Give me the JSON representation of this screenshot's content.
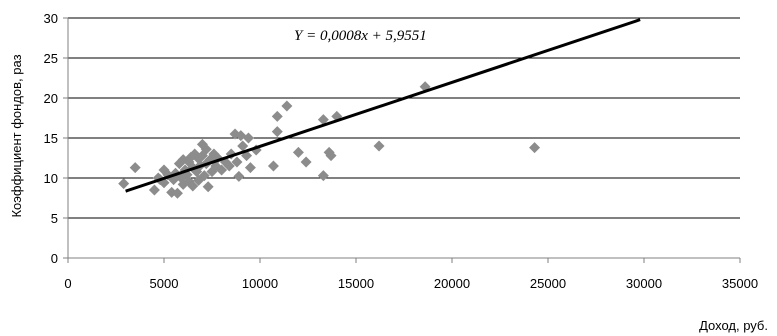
{
  "chart_data": {
    "type": "scatter",
    "title": "",
    "xlabel": "Доход, руб.",
    "ylabel": "Коэффициент фондов, раз",
    "xlim": [
      0,
      35000
    ],
    "ylim": [
      0,
      30
    ],
    "xticks": [
      0,
      5000,
      10000,
      15000,
      20000,
      25000,
      30000,
      35000
    ],
    "yticks": [
      0,
      5,
      10,
      15,
      20,
      25,
      30
    ],
    "grid": "horizontal",
    "legend": "none",
    "marker": "diamond",
    "colors": {
      "points": "#8c8c8c",
      "trendline": "#000000",
      "grid": "#000000",
      "axis": "#808080"
    },
    "series": [
      {
        "points": [
          {
            "x": 2900,
            "y": 9.3
          },
          {
            "x": 3500,
            "y": 11.3
          },
          {
            "x": 4500,
            "y": 8.5
          },
          {
            "x": 4700,
            "y": 10.0
          },
          {
            "x": 4800,
            "y": 9.8
          },
          {
            "x": 5000,
            "y": 11.0
          },
          {
            "x": 5000,
            "y": 9.4
          },
          {
            "x": 5200,
            "y": 10.4
          },
          {
            "x": 5400,
            "y": 8.2
          },
          {
            "x": 5500,
            "y": 9.8
          },
          {
            "x": 5600,
            "y": 10.6
          },
          {
            "x": 5700,
            "y": 8.1
          },
          {
            "x": 5800,
            "y": 11.8
          },
          {
            "x": 5900,
            "y": 10.0
          },
          {
            "x": 6000,
            "y": 12.3
          },
          {
            "x": 6000,
            "y": 9.2
          },
          {
            "x": 6100,
            "y": 11.0
          },
          {
            "x": 6200,
            "y": 10.4
          },
          {
            "x": 6300,
            "y": 12.0
          },
          {
            "x": 6300,
            "y": 9.6
          },
          {
            "x": 6400,
            "y": 12.6
          },
          {
            "x": 6500,
            "y": 11.3
          },
          {
            "x": 6500,
            "y": 9.0
          },
          {
            "x": 6600,
            "y": 13.0
          },
          {
            "x": 6700,
            "y": 10.8
          },
          {
            "x": 6800,
            "y": 12.4
          },
          {
            "x": 6800,
            "y": 9.7
          },
          {
            "x": 6900,
            "y": 11.6
          },
          {
            "x": 7000,
            "y": 14.2
          },
          {
            "x": 7000,
            "y": 12.8
          },
          {
            "x": 7100,
            "y": 10.3
          },
          {
            "x": 7200,
            "y": 13.6
          },
          {
            "x": 7200,
            "y": 11.8
          },
          {
            "x": 7300,
            "y": 8.9
          },
          {
            "x": 7400,
            "y": 12.3
          },
          {
            "x": 7500,
            "y": 10.8
          },
          {
            "x": 7600,
            "y": 13.0
          },
          {
            "x": 7700,
            "y": 11.5
          },
          {
            "x": 7800,
            "y": 12.5
          },
          {
            "x": 8000,
            "y": 11.0
          },
          {
            "x": 8200,
            "y": 12.0
          },
          {
            "x": 8400,
            "y": 11.5
          },
          {
            "x": 8500,
            "y": 13.0
          },
          {
            "x": 8700,
            "y": 15.5
          },
          {
            "x": 8800,
            "y": 12.0
          },
          {
            "x": 8900,
            "y": 10.2
          },
          {
            "x": 9000,
            "y": 15.3
          },
          {
            "x": 9100,
            "y": 14.0
          },
          {
            "x": 9300,
            "y": 12.8
          },
          {
            "x": 9400,
            "y": 15.0
          },
          {
            "x": 9500,
            "y": 11.3
          },
          {
            "x": 9800,
            "y": 13.5
          },
          {
            "x": 10700,
            "y": 11.5
          },
          {
            "x": 10900,
            "y": 17.7
          },
          {
            "x": 10900,
            "y": 15.8
          },
          {
            "x": 11400,
            "y": 19.0
          },
          {
            "x": 12000,
            "y": 13.2
          },
          {
            "x": 12400,
            "y": 12.0
          },
          {
            "x": 13300,
            "y": 17.3
          },
          {
            "x": 13300,
            "y": 10.3
          },
          {
            "x": 13600,
            "y": 13.2
          },
          {
            "x": 13700,
            "y": 12.8
          },
          {
            "x": 14000,
            "y": 17.7
          },
          {
            "x": 16200,
            "y": 14.0
          },
          {
            "x": 18600,
            "y": 21.4
          },
          {
            "x": 24300,
            "y": 13.8
          }
        ]
      }
    ],
    "trendline": {
      "slope": 0.0008,
      "intercept": 5.9551,
      "x_range": [
        3000,
        29800
      ],
      "equation_text": "Y = 0,0008x + 5,9551"
    }
  }
}
